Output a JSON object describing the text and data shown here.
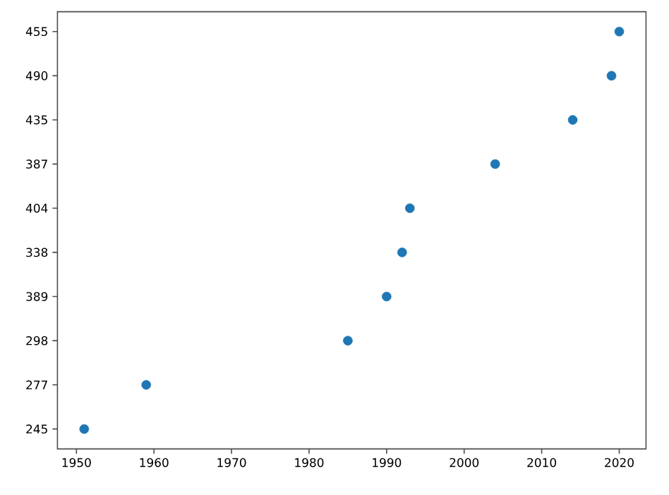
{
  "chart_data": {
    "type": "scatter",
    "orientation": "horizontal",
    "categories": [
      "455",
      "490",
      "435",
      "387",
      "404",
      "338",
      "389",
      "298",
      "277",
      "245"
    ],
    "values": [
      2020,
      2019,
      2014,
      2004,
      1993,
      1992,
      1990,
      1985,
      1959,
      1951
    ],
    "color": "#1f77b4",
    "marker": "circle",
    "xlim": [
      1947.55,
      2023.45
    ],
    "xticks": [
      1950,
      1960,
      1970,
      1980,
      1990,
      2000,
      2010,
      2020
    ],
    "grid": false
  }
}
